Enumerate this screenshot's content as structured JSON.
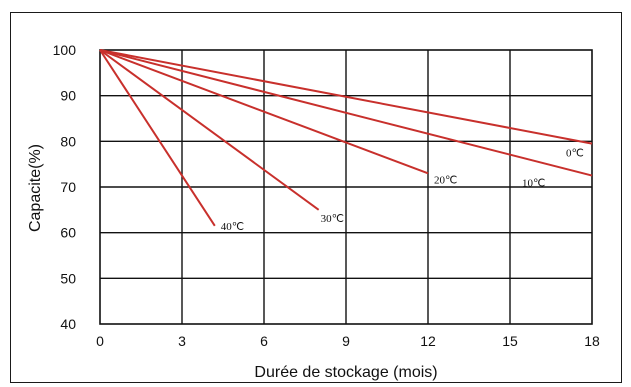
{
  "chart_data": {
    "type": "line",
    "title": "",
    "xlabel": "Durée de stockage (mois)",
    "ylabel": "Capacite(%)",
    "xlim": [
      0,
      18
    ],
    "ylim": [
      40,
      100
    ],
    "xticks": [
      "0",
      "3",
      "6",
      "9",
      "12",
      "15",
      "18"
    ],
    "yticks": [
      "40",
      "50",
      "60",
      "70",
      "80",
      "90",
      "100"
    ],
    "grid": true,
    "legend": "none",
    "line_color": "#c8302c",
    "series": [
      {
        "name": "0℃",
        "x": [
          0,
          18
        ],
        "y": [
          100,
          79.5
        ]
      },
      {
        "name": "10℃",
        "x": [
          0,
          18
        ],
        "y": [
          100,
          72.5
        ]
      },
      {
        "name": "20℃",
        "x": [
          0,
          12
        ],
        "y": [
          100,
          73
        ]
      },
      {
        "name": "30℃",
        "x": [
          0,
          8
        ],
        "y": [
          100,
          65
        ]
      },
      {
        "name": "40℃",
        "x": [
          0,
          4.2
        ],
        "y": [
          100,
          61.5
        ]
      }
    ]
  }
}
